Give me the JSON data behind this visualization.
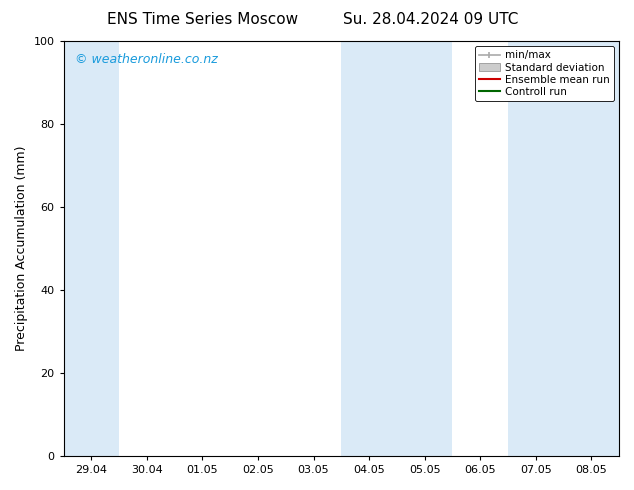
{
  "title_left": "ENS Time Series Moscow",
  "title_right": "Su. 28.04.2024 09 UTC",
  "ylabel": "Precipitation Accumulation (mm)",
  "ylim": [
    0,
    100
  ],
  "yticks": [
    0,
    20,
    40,
    60,
    80,
    100
  ],
  "x_tick_labels": [
    "29.04",
    "30.04",
    "01.05",
    "02.05",
    "03.05",
    "04.05",
    "05.05",
    "06.05",
    "07.05",
    "08.05"
  ],
  "x_tick_positions": [
    0,
    1,
    2,
    3,
    4,
    5,
    6,
    7,
    8,
    9
  ],
  "xlim": [
    -0.5,
    9.5
  ],
  "background_color": "#ffffff",
  "plot_bg_color": "#ffffff",
  "shaded_band_color": "#daeaf7",
  "shaded_regions": [
    {
      "x_start": -0.5,
      "x_end": 0.5
    },
    {
      "x_start": 4.5,
      "x_end": 6.5
    },
    {
      "x_start": 7.5,
      "x_end": 9.5
    }
  ],
  "watermark_text": "© weatheronline.co.nz",
  "watermark_color": "#1a9bdc",
  "legend_items": [
    {
      "label": "min/max",
      "color": "#aaaaaa",
      "style": "minmax"
    },
    {
      "label": "Standard deviation",
      "color": "#cccccc",
      "style": "stddev"
    },
    {
      "label": "Ensemble mean run",
      "color": "#cc0000",
      "style": "line"
    },
    {
      "label": "Controll run",
      "color": "#006600",
      "style": "line"
    }
  ],
  "title_fontsize": 11,
  "axis_label_fontsize": 9,
  "tick_fontsize": 8,
  "legend_fontsize": 7.5,
  "watermark_fontsize": 9
}
